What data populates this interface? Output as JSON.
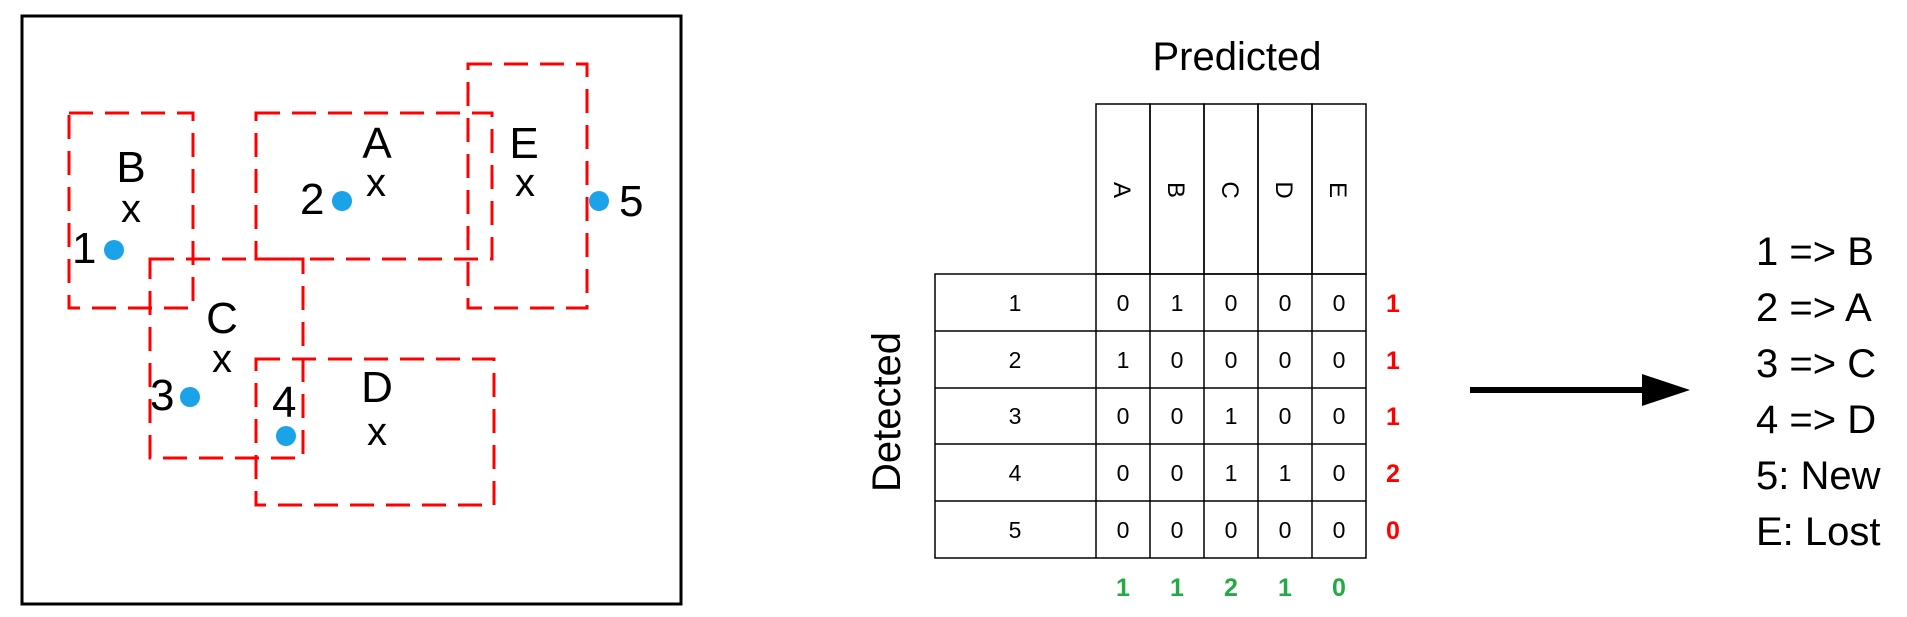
{
  "scene": {
    "boxes": [
      {
        "label": "B"
      },
      {
        "label": "A"
      },
      {
        "label": "E"
      },
      {
        "label": "C"
      },
      {
        "label": "D"
      }
    ],
    "points": [
      {
        "label": "1"
      },
      {
        "label": "2"
      },
      {
        "label": "3"
      },
      {
        "label": "4"
      },
      {
        "label": "5"
      }
    ],
    "marker_glyph": "x",
    "box_color": "#ff0000",
    "point_color": "#1aa3e8"
  },
  "matrix": {
    "column_title": "Predicted",
    "row_title": "Detected",
    "columns": [
      "A",
      "B",
      "C",
      "D",
      "E"
    ],
    "rows": [
      {
        "label": "1",
        "cells": [
          "0",
          "1",
          "0",
          "0",
          "0"
        ],
        "total": "1"
      },
      {
        "label": "2",
        "cells": [
          "1",
          "0",
          "0",
          "0",
          "0"
        ],
        "total": "1"
      },
      {
        "label": "3",
        "cells": [
          "0",
          "0",
          "1",
          "0",
          "0"
        ],
        "total": "1"
      },
      {
        "label": "4",
        "cells": [
          "0",
          "0",
          "1",
          "1",
          "0"
        ],
        "total": "2"
      },
      {
        "label": "5",
        "cells": [
          "0",
          "0",
          "0",
          "0",
          "0"
        ],
        "total": "0"
      }
    ],
    "column_totals": [
      "1",
      "1",
      "2",
      "1",
      "0"
    ],
    "row_total_color": "#ff0000",
    "column_total_color": "#22aa44"
  },
  "results": [
    "1 => B",
    "2 => A",
    "3 => C",
    "4 => D",
    "5: New",
    "E: Lost"
  ]
}
